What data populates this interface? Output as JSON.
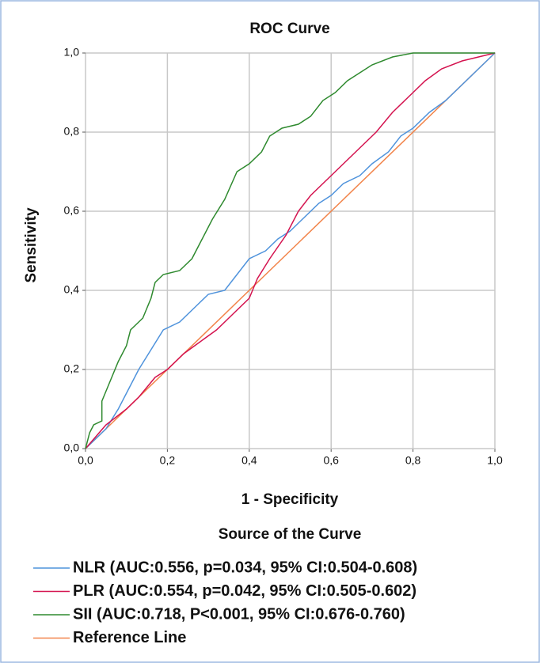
{
  "chart_data": {
    "type": "line",
    "title": "ROC Curve",
    "x_label": "1 - Specificity",
    "y_label": "Sensitivity",
    "legend_title": "Source of the Curve",
    "legend": "bottom",
    "grid": true,
    "xlim": [
      0,
      1
    ],
    "ylim": [
      0,
      1
    ],
    "xticks": [
      {
        "value": 0,
        "label": "0,0"
      },
      {
        "value": 0.2,
        "label": "0,2"
      },
      {
        "value": 0.4,
        "label": "0,4"
      },
      {
        "value": 0.6,
        "label": "0,6"
      },
      {
        "value": 0.8,
        "label": "0,8"
      },
      {
        "value": 1,
        "label": "1,0"
      }
    ],
    "yticks": [
      {
        "value": 0,
        "label": "0,0"
      },
      {
        "value": 0.2,
        "label": "0,2"
      },
      {
        "value": 0.4,
        "label": "0,4"
      },
      {
        "value": 0.6,
        "label": "0,6"
      },
      {
        "value": 0.8,
        "label": "0,8"
      },
      {
        "value": 1,
        "label": "1,0"
      }
    ],
    "series": [
      {
        "name": "NLR (AUC:0.556, p=0.034, 95% CI:0.504-0.608)",
        "color": "#4f93dc",
        "x": [
          0,
          0.05,
          0.08,
          0.1,
          0.13,
          0.16,
          0.19,
          0.23,
          0.27,
          0.3,
          0.34,
          0.37,
          0.4,
          0.44,
          0.47,
          0.5,
          0.53,
          0.57,
          0.6,
          0.63,
          0.67,
          0.7,
          0.74,
          0.77,
          0.8,
          0.84,
          0.88,
          0.92,
          0.96,
          1
        ],
        "values": [
          0,
          0.05,
          0.1,
          0.14,
          0.2,
          0.25,
          0.3,
          0.32,
          0.36,
          0.39,
          0.4,
          0.44,
          0.48,
          0.5,
          0.53,
          0.55,
          0.58,
          0.62,
          0.64,
          0.67,
          0.69,
          0.72,
          0.75,
          0.79,
          0.81,
          0.85,
          0.88,
          0.92,
          0.96,
          1
        ]
      },
      {
        "name": "PLR (AUC:0.554, p=0.042, 95% CI:0.505-0.602)",
        "color": "#d4134f",
        "x": [
          0,
          0.05,
          0.1,
          0.13,
          0.17,
          0.2,
          0.24,
          0.28,
          0.32,
          0.36,
          0.4,
          0.42,
          0.45,
          0.49,
          0.52,
          0.55,
          0.59,
          0.63,
          0.67,
          0.71,
          0.75,
          0.79,
          0.83,
          0.87,
          0.92,
          0.96,
          1
        ],
        "values": [
          0,
          0.06,
          0.1,
          0.13,
          0.18,
          0.2,
          0.24,
          0.27,
          0.3,
          0.34,
          0.38,
          0.43,
          0.48,
          0.54,
          0.6,
          0.64,
          0.68,
          0.72,
          0.76,
          0.8,
          0.85,
          0.89,
          0.93,
          0.96,
          0.98,
          0.99,
          1
        ]
      },
      {
        "name": "SII (AUC:0.718, P<0.001, 95% CI:0.676-0.760)",
        "color": "#2f8a2f",
        "x": [
          0,
          0.01,
          0.02,
          0.04,
          0.04,
          0.06,
          0.08,
          0.1,
          0.11,
          0.14,
          0.16,
          0.17,
          0.19,
          0.23,
          0.26,
          0.28,
          0.31,
          0.34,
          0.37,
          0.4,
          0.43,
          0.45,
          0.48,
          0.52,
          0.55,
          0.58,
          0.61,
          0.64,
          0.67,
          0.7,
          0.75,
          0.8,
          1
        ],
        "values": [
          0,
          0.04,
          0.06,
          0.07,
          0.12,
          0.17,
          0.22,
          0.26,
          0.3,
          0.33,
          0.38,
          0.42,
          0.44,
          0.45,
          0.48,
          0.52,
          0.58,
          0.63,
          0.7,
          0.72,
          0.75,
          0.79,
          0.81,
          0.82,
          0.84,
          0.88,
          0.9,
          0.93,
          0.95,
          0.97,
          0.99,
          1,
          1
        ]
      },
      {
        "name": "Reference Line",
        "color": "#f2844a",
        "x": [
          0,
          1
        ],
        "values": [
          0,
          1
        ]
      }
    ]
  }
}
